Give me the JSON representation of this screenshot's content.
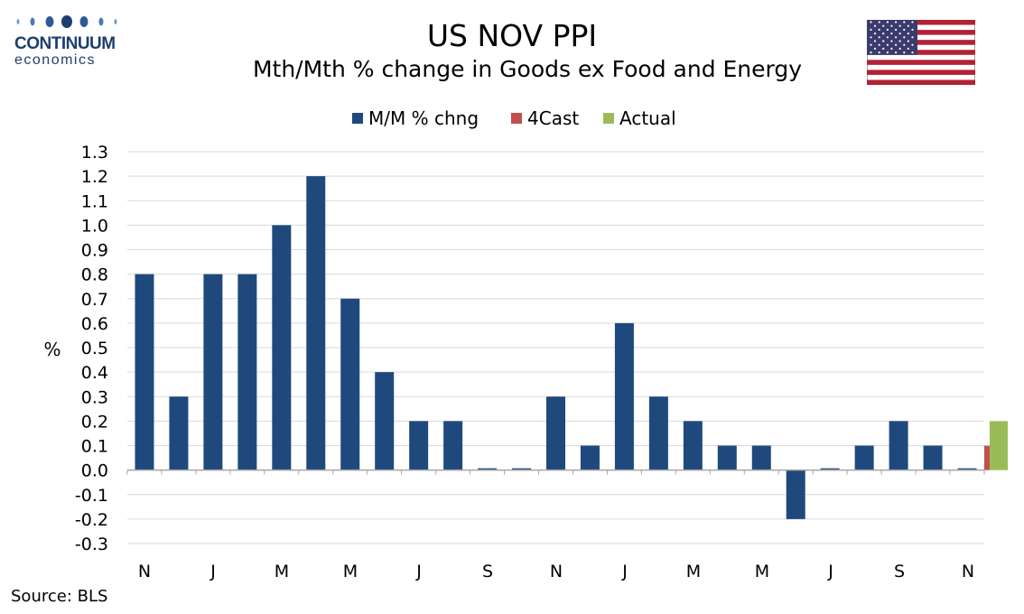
{
  "logo": {
    "brand": "CONTINUUM",
    "sub": "economics"
  },
  "header": {
    "title": "US NOV PPI",
    "subtitle": "Mth/Mth % change in Goods ex Food and Energy"
  },
  "flag_icon": "us-flag-icon",
  "source": "Source: BLS",
  "colors": {
    "series": "#1f497d",
    "forecast": "#c0504d",
    "actual": "#9bbb59",
    "grid": "#d9d9d9"
  },
  "chart_data": {
    "type": "bar",
    "ylabel": "%",
    "ylim": [
      -0.3,
      1.3
    ],
    "yticks": [
      "1.3",
      "1.2",
      "1.1",
      "1.0",
      "0.9",
      "0.8",
      "0.7",
      "0.6",
      "0.5",
      "0.4",
      "0.3",
      "0.2",
      "0.1",
      "0.0",
      "-0.1",
      "-0.2",
      "-0.3"
    ],
    "grid": true,
    "legend_position": "top",
    "x_tick_labels": [
      "N",
      "J",
      "M",
      "M",
      "J",
      "S",
      "N",
      "J",
      "M",
      "M",
      "J",
      "S",
      "N"
    ],
    "series": [
      {
        "name": "M/M % chng",
        "color": "#1f497d",
        "values": [
          0.8,
          0.3,
          0.8,
          0.8,
          1.0,
          1.2,
          0.7,
          0.4,
          0.2,
          0.2,
          0.0,
          0.0,
          0.3,
          0.1,
          0.6,
          0.3,
          0.2,
          0.1,
          0.1,
          -0.2,
          0.0,
          0.1,
          0.2,
          0.1,
          0.0
        ]
      },
      {
        "name": "4Cast",
        "color": "#c0504d",
        "values": [
          0.1
        ]
      },
      {
        "name": "Actual",
        "color": "#9bbb59",
        "values": [
          0.2
        ]
      }
    ]
  }
}
